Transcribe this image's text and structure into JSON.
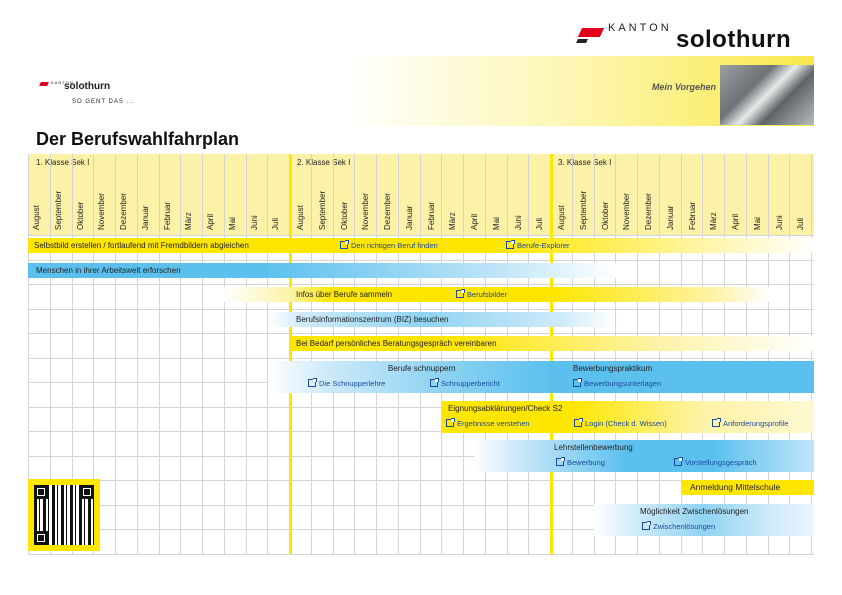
{
  "header": {
    "logo_kanton": "KANTON",
    "logo_solothurn": "solothurn",
    "small_logo_kanton": "KANTON",
    "small_logo_solothurn": "solothurn",
    "small_logo_tagline": "SO GENT DAS ...",
    "mein_vorgehen": "Mein Vorgehen",
    "title": "Der Berufswahlfahrplan"
  },
  "colors": {
    "yellow": "#ffe600",
    "light_yellow": "#fbf2a8",
    "blue": "#5bc0ee",
    "light_blue": "#cfeafa",
    "link_blue": "#1a4a9e"
  },
  "years": [
    {
      "label": "1. Klasse Sek I"
    },
    {
      "label": "2. Klasse Sek I"
    },
    {
      "label": "3. Klasse Sek I"
    }
  ],
  "months": [
    "August",
    "September",
    "Oktober",
    "November",
    "Dezember",
    "Januar",
    "Februar",
    "März",
    "April",
    "Mai",
    "Juni",
    "Juli"
  ],
  "rows": [
    {
      "label": "Selbstbild erstellen / fortlaufend mit Fremdbildern abgleichen",
      "color": "yellow",
      "links": [
        "Den richtigen Beruf finden",
        "Berufe-Explorer"
      ]
    },
    {
      "label": "Menschen in ihrer Arbeitswelt erforschen",
      "color": "blue",
      "links": []
    },
    {
      "label": "Infos über Berufe sammeln",
      "color": "yellow",
      "links": [
        "Berufsbilder"
      ]
    },
    {
      "label": "Berufsinformationszentrum (BIZ) besuchen",
      "color": "blue",
      "links": []
    },
    {
      "label": "Bei Bedarf persönliches Beratungsgespräch vereinbaren",
      "color": "yellow",
      "links": []
    },
    {
      "label": "Berufe schnuppern",
      "color": "blue",
      "links": [
        "Die Schnupperlehre",
        "Schnupperbericht"
      ]
    },
    {
      "label": "Bewerbungspraktikum",
      "color": "blue",
      "links": [
        "Bewerbungsunterlagen"
      ]
    },
    {
      "label": "Eignungsabklärungen/Check S2",
      "color": "yellow",
      "links": [
        "Ergebnisse verstehen",
        "Login (Check d. Wissen)",
        "Anforderungsprofile"
      ]
    },
    {
      "label": "Lehrstellenbewerbung",
      "color": "blue",
      "links": [
        "Bewerbung",
        "Vorstellungsgespräch"
      ]
    },
    {
      "label": "Anmeldung Mittelschule",
      "color": "yellow",
      "links": []
    },
    {
      "label": "Möglichkeit Zwischenlösungen",
      "color": "blue",
      "links": [
        "Zwischenlösungen"
      ]
    }
  ]
}
